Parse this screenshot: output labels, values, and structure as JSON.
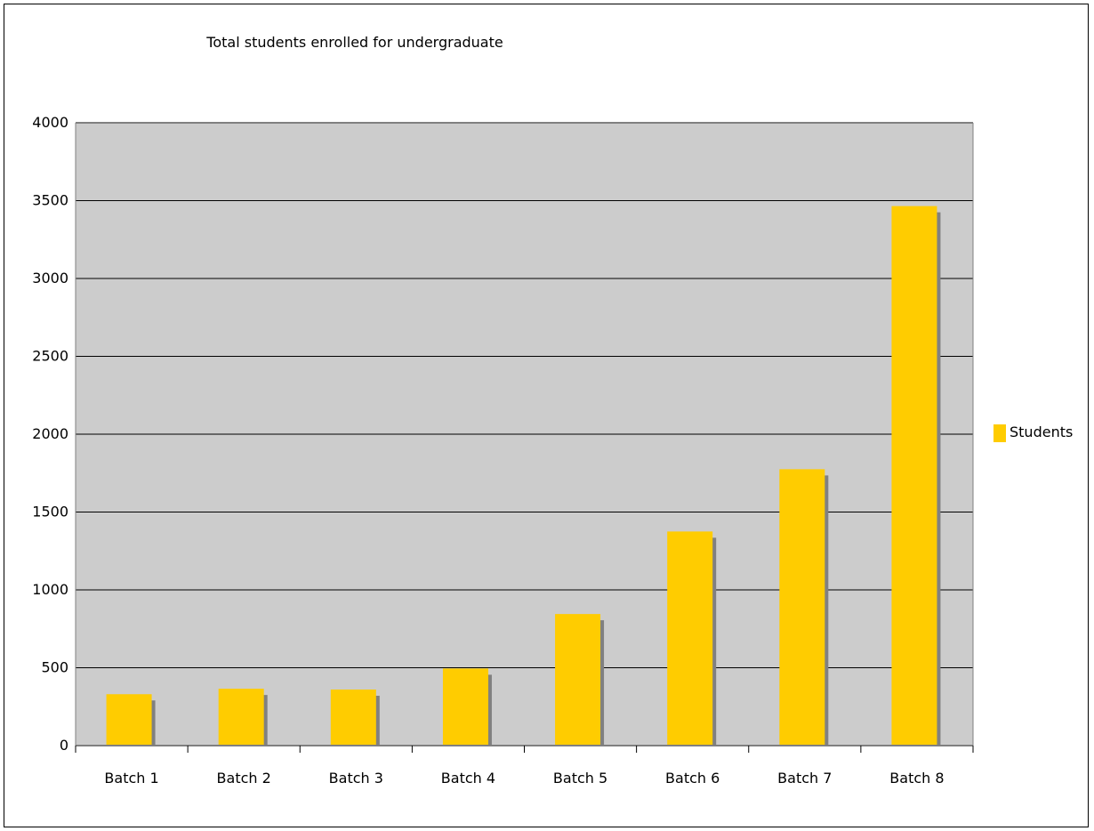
{
  "chart_data": {
    "type": "bar",
    "title": "Total students enrolled for undergraduate",
    "xlabel": "",
    "ylabel": "",
    "categories": [
      "Batch 1",
      "Batch 2",
      "Batch 3",
      "Batch 4",
      "Batch 5",
      "Batch 6",
      "Batch 7",
      "Batch 8"
    ],
    "series": [
      {
        "name": "Students",
        "values": [
          330,
          365,
          360,
          495,
          845,
          1375,
          1775,
          3465
        ]
      }
    ],
    "ylim": [
      0,
      4000
    ],
    "yticks": [
      0,
      500,
      1000,
      1500,
      2000,
      2500,
      3000,
      3500,
      4000
    ],
    "grid": true,
    "legend": "right",
    "colors": {
      "bar": "#FFCC00",
      "bar_shadow": "#808080",
      "plot_bg": "#CCCCCC",
      "grid": "#000000"
    }
  }
}
